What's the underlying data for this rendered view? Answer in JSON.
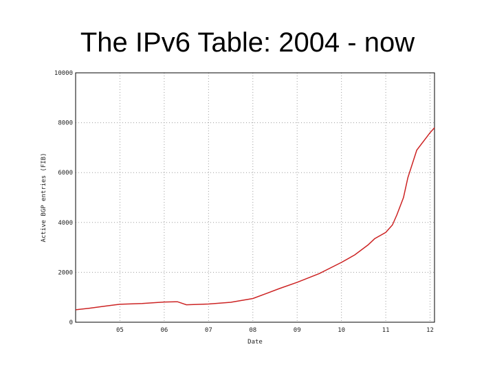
{
  "slide": {
    "title": "The IPv6 Table: 2004 - now"
  },
  "chart_data": {
    "type": "line",
    "title": "",
    "xlabel": "Date",
    "ylabel": "Active BGP entries (FIB)",
    "xlim": [
      2004.0,
      2012.1
    ],
    "ylim": [
      0,
      10000
    ],
    "x_ticks": [
      2005,
      2006,
      2007,
      2008,
      2009,
      2010,
      2011,
      2012
    ],
    "x_tick_labels": [
      "05",
      "06",
      "07",
      "08",
      "09",
      "10",
      "11",
      "12"
    ],
    "y_ticks": [
      0,
      2000,
      4000,
      6000,
      8000,
      10000
    ],
    "y_tick_labels": [
      "0",
      "2000",
      "4000",
      "6000",
      "8000",
      "10000"
    ],
    "grid": true,
    "series_color": "#cc2222",
    "series": [
      {
        "x": [
          2004.0,
          2004.3,
          2004.6,
          2004.9,
          2005.0,
          2005.5,
          2006.0,
          2006.3,
          2006.5,
          2007.0,
          2007.5,
          2008.0,
          2008.3,
          2008.6,
          2009.0,
          2009.5,
          2010.0,
          2010.3,
          2010.6,
          2010.75,
          2011.0,
          2011.15,
          2011.25,
          2011.4,
          2011.5,
          2011.7,
          2012.0,
          2012.1
        ],
        "y": [
          500,
          560,
          630,
          700,
          720,
          750,
          810,
          820,
          700,
          730,
          800,
          950,
          1150,
          1350,
          1600,
          1950,
          2400,
          2700,
          3100,
          3350,
          3600,
          3900,
          4300,
          5000,
          5800,
          6900,
          7600,
          7800
        ]
      }
    ]
  }
}
